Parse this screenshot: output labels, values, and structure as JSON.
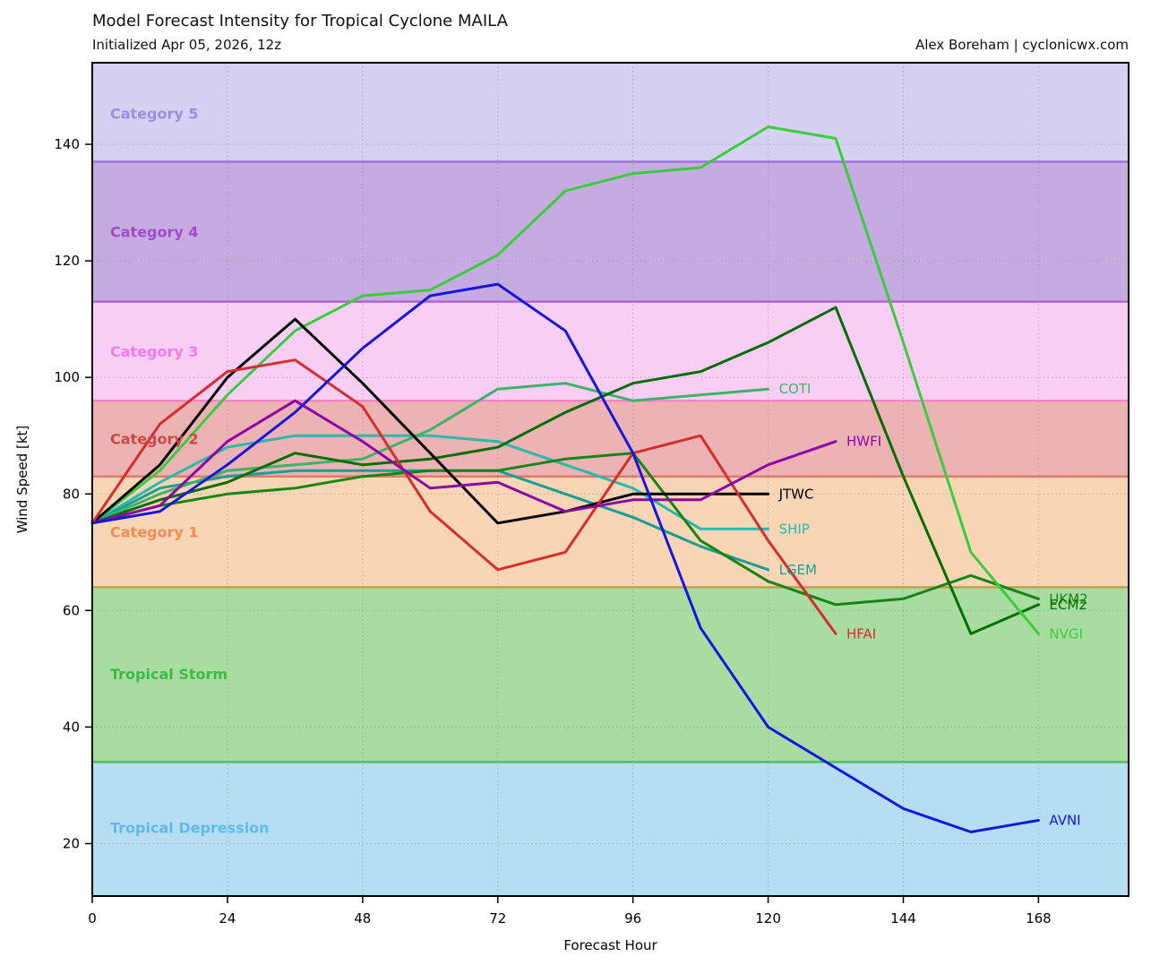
{
  "header": {
    "title": "Model Forecast Intensity for Tropical Cyclone MAILA",
    "subtitle": "Initialized Apr 05, 2026, 12z",
    "credit": "Alex Boreham | cyclonicwx.com"
  },
  "chart_data": {
    "type": "line",
    "title": "Model Forecast Intensity for Tropical Cyclone MAILA",
    "subtitle": "Initialized Apr 05, 2026, 12z",
    "xlabel": "Forecast Hour",
    "ylabel": "Wind Speed [kt]",
    "xlim": [
      0,
      184
    ],
    "ylim": [
      11,
      154
    ],
    "xticks": [
      0,
      24,
      48,
      72,
      96,
      120,
      144,
      168
    ],
    "yticks": [
      20,
      40,
      60,
      80,
      100,
      120,
      140
    ],
    "grid": true,
    "legend_position": "end-of-line labels",
    "bands": [
      {
        "label": "Tropical Depression",
        "from": 11,
        "to": 34,
        "fill": "#b5def2",
        "edge": "#52bd60",
        "label_color": "#5fb9ea",
        "label_y": 22.8
      },
      {
        "label": "Tropical Storm",
        "from": 34,
        "to": 64,
        "fill": "#a9dca0",
        "edge": "#c29f50",
        "label_color": "#3eb847",
        "label_y": 49.1
      },
      {
        "label": "Category 1",
        "from": 64,
        "to": 83,
        "fill": "#f8d5b4",
        "edge": "#e07a68",
        "label_color": "#ef8e52",
        "label_y": 73.5
      },
      {
        "label": "Category 2",
        "from": 83,
        "to": 96,
        "fill": "#ecb2b4",
        "edge": "#f287c6",
        "label_color": "#c94848",
        "label_y": 89.5
      },
      {
        "label": "Category 3",
        "from": 96,
        "to": 113,
        "fill": "#f8cef5",
        "edge": "#b164d4",
        "label_color": "#f07ae8",
        "label_y": 104.5
      },
      {
        "label": "Category 4",
        "from": 113,
        "to": 137,
        "fill": "#c6abe1",
        "edge": "#9c74da",
        "label_color": "#a348cf",
        "label_y": 125.0
      },
      {
        "label": "Category 5",
        "from": 137,
        "to": 154,
        "fill": "#d6d0f3",
        "edge": null,
        "label_color": "#9a8fdf",
        "label_y": 145.3
      }
    ],
    "series": [
      {
        "name": "SHIP",
        "color": "#2cb8ad",
        "x": [
          0,
          12,
          24,
          36,
          48,
          60,
          72,
          84,
          96,
          108,
          120
        ],
        "y": [
          75,
          82,
          88,
          90,
          90,
          90,
          89,
          85,
          81,
          74,
          74
        ]
      },
      {
        "name": "LGEM",
        "color": "#1b9e96",
        "x": [
          0,
          12,
          24,
          36,
          48,
          60,
          72,
          84,
          96,
          108,
          120
        ],
        "y": [
          75,
          81,
          83,
          84,
          84,
          84,
          84,
          80,
          76,
          71,
          67
        ]
      },
      {
        "name": "COTI",
        "color": "#3eb368",
        "x": [
          0,
          12,
          24,
          36,
          48,
          60,
          72,
          84,
          96,
          108,
          120
        ],
        "y": [
          75,
          80,
          84,
          85,
          86,
          91,
          98,
          99,
          96,
          97,
          98
        ]
      },
      {
        "name": "UKM2",
        "color": "#158515",
        "x": [
          0,
          12,
          24,
          36,
          48,
          60,
          72,
          84,
          96,
          108,
          120,
          132,
          144,
          156,
          168
        ],
        "y": [
          75,
          78,
          80,
          81,
          83,
          84,
          84,
          86,
          87,
          72,
          65,
          61,
          62,
          66,
          62
        ]
      },
      {
        "name": "ECM2",
        "color": "#066e06",
        "x": [
          0,
          12,
          24,
          36,
          48,
          60,
          72,
          84,
          96,
          108,
          120,
          132,
          144,
          156,
          168
        ],
        "y": [
          75,
          79,
          82,
          87,
          85,
          86,
          88,
          94,
          99,
          101,
          106,
          112,
          83,
          56,
          61
        ]
      },
      {
        "name": "NVGI",
        "color": "#3acc3e",
        "x": [
          0,
          12,
          24,
          36,
          48,
          60,
          72,
          84,
          96,
          108,
          120,
          132,
          144,
          156,
          168
        ],
        "y": [
          75,
          84,
          97,
          108,
          114,
          115,
          121,
          132,
          135,
          136,
          143,
          141,
          106,
          70,
          56
        ]
      },
      {
        "name": "JTWC",
        "color": "#000000",
        "x": [
          0,
          12,
          24,
          36,
          48,
          60,
          72,
          84,
          96,
          108,
          120
        ],
        "y": [
          75,
          85,
          100,
          110,
          99,
          87,
          75,
          77,
          80,
          80,
          80
        ]
      },
      {
        "name": "HFAI",
        "color": "#d62e2e",
        "x": [
          0,
          12,
          24,
          36,
          48,
          60,
          72,
          84,
          96,
          108,
          120,
          132
        ],
        "y": [
          75,
          92,
          101,
          103,
          95,
          77,
          67,
          70,
          87,
          90,
          72,
          56
        ]
      },
      {
        "name": "HWFI",
        "color": "#8d07a7",
        "x": [
          0,
          12,
          24,
          36,
          48,
          60,
          72,
          84,
          96,
          108,
          120,
          132
        ],
        "y": [
          75,
          78,
          89,
          96,
          89,
          81,
          82,
          77,
          79,
          79,
          85,
          89
        ]
      },
      {
        "name": "AVNI",
        "color": "#1616dd",
        "x": [
          0,
          12,
          24,
          36,
          48,
          60,
          72,
          84,
          96,
          108,
          120,
          132,
          144,
          156,
          168
        ],
        "y": [
          75,
          77,
          85,
          94,
          105,
          114,
          116,
          108,
          87,
          57,
          40,
          33,
          26,
          22,
          24
        ]
      }
    ]
  }
}
